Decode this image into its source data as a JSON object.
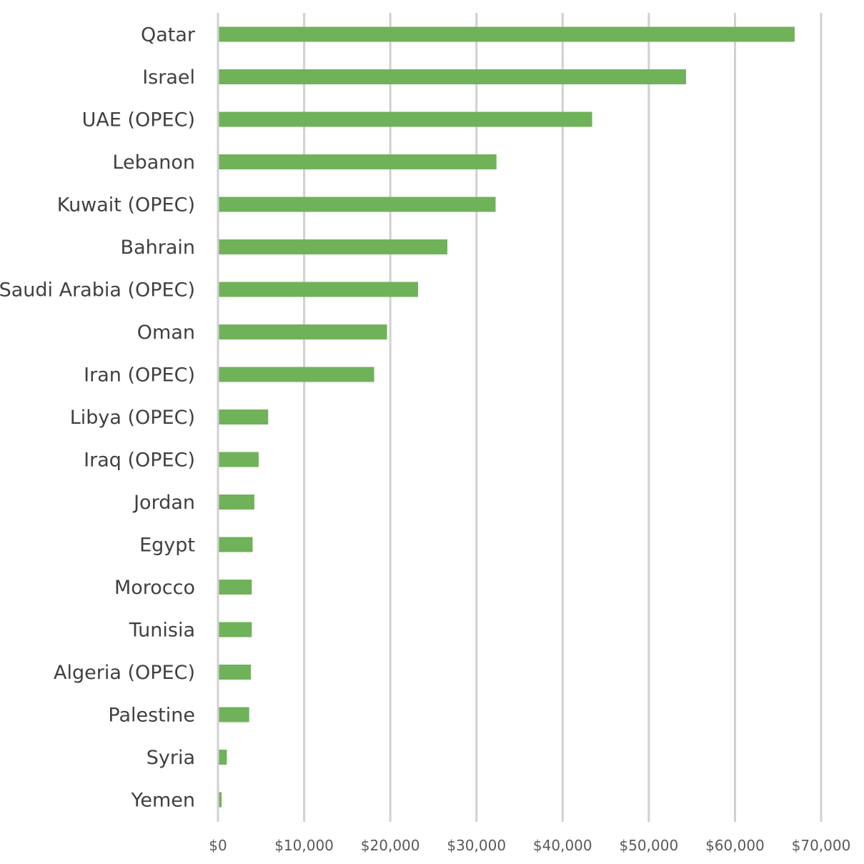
{
  "chart_data": {
    "type": "bar",
    "orientation": "horizontal",
    "title": "",
    "xlabel": "",
    "ylabel": "",
    "categories": [
      "Qatar",
      "Israel",
      "UAE (OPEC)",
      "Lebanon",
      "Kuwait (OPEC)",
      "Bahrain",
      "Saudi Arabia (OPEC)",
      "Oman",
      "Iran (OPEC)",
      "Libya (OPEC)",
      "Iraq (OPEC)",
      "Jordan",
      "Egypt",
      "Morocco",
      "Tunisia",
      "Algeria (OPEC)",
      "Palestine",
      "Syria",
      "Yemen"
    ],
    "values": [
      66800,
      54200,
      43300,
      32200,
      32100,
      26500,
      23100,
      19500,
      18000,
      5700,
      4600,
      4100,
      3900,
      3800,
      3800,
      3700,
      3500,
      900,
      300
    ],
    "xlim": [
      0,
      70000
    ],
    "xticks": [
      0,
      10000,
      20000,
      30000,
      40000,
      50000,
      60000,
      70000
    ],
    "xtick_labels": [
      "$0",
      "$10,000",
      "$20,000",
      "$30,000",
      "$40,000",
      "$50,000",
      "$60,000",
      "$70,000"
    ],
    "grid": true,
    "legend": "none",
    "bar_color": "#70b25a",
    "grid_color": "#d0d0d0",
    "label_color": "#404040"
  }
}
